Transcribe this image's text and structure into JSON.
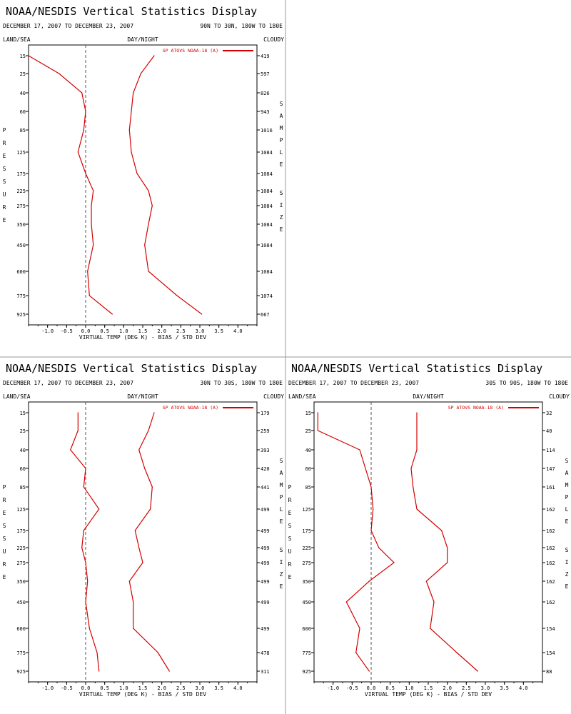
{
  "colors": {
    "series": "#d40000",
    "axis": "#000000",
    "zero_line": "#555555",
    "panel_border": "#999999"
  },
  "chart_data": [
    {
      "type": "line",
      "title": "NOAA/NESDIS Vertical Statistics Display",
      "date_range": "DECEMBER 17, 2007 TO DECEMBER 23, 2007",
      "region": "90N TO 30N, 180W TO 180E",
      "land_sea_label": "LAND/SEA",
      "day_night_label": "DAY/NIGHT",
      "cloudy_label": "CLOUDY",
      "ylabel": "PRESSURE",
      "right_label": "SAMPLE SIZE",
      "xlabel": "VIRTUAL TEMP (DEG K) - BIAS / STD DEV",
      "legend": "SP ATOVS NOAA-18 (A)",
      "legend_position": "top-right",
      "xlim": [
        -1.5,
        4.5
      ],
      "x_ticks": [
        "-1.0",
        "-0.5",
        "0.0",
        "0.5",
        "1.0",
        "1.5",
        "2.0",
        "2.5",
        "3.0",
        "3.5",
        "4.0"
      ],
      "pressure_levels": [
        "15",
        "25",
        "40",
        "60",
        "85",
        "125",
        "175",
        "225",
        "275",
        "350",
        "450",
        "600",
        "775",
        "925"
      ],
      "sample_size": [
        "419",
        "597",
        "826",
        "943",
        "1016",
        "1084",
        "1084",
        "1084",
        "1084",
        "1084",
        "1084",
        "1084",
        "1074",
        "667"
      ],
      "bias": [
        -1.5,
        -0.7,
        -0.1,
        0.0,
        -0.05,
        -0.2,
        0.0,
        0.2,
        0.15,
        0.15,
        0.2,
        0.05,
        0.1,
        0.7
      ],
      "std_dev": [
        1.8,
        1.45,
        1.25,
        1.2,
        1.15,
        1.2,
        1.35,
        1.65,
        1.75,
        1.65,
        1.55,
        1.65,
        2.4,
        3.05
      ]
    },
    {
      "type": "line",
      "title": "NOAA/NESDIS Vertical Statistics Display",
      "date_range": "DECEMBER 17, 2007 TO DECEMBER 23, 2007",
      "region": "30N TO 30S, 180W TO 180E",
      "land_sea_label": "LAND/SEA",
      "day_night_label": "DAY/NIGHT",
      "cloudy_label": "CLOUDY",
      "ylabel": "PRESSURE",
      "right_label": "SAMPLE SIZE",
      "xlabel": "VIRTUAL TEMP (DEG K) - BIAS / STD DEV",
      "legend": "SP ATOVS NOAA-18 (A)",
      "legend_position": "top-right",
      "xlim": [
        -1.5,
        4.5
      ],
      "x_ticks": [
        "-1.0",
        "-0.5",
        "0.0",
        "0.5",
        "1.0",
        "1.5",
        "2.0",
        "2.5",
        "3.0",
        "3.5",
        "4.0"
      ],
      "pressure_levels": [
        "15",
        "25",
        "40",
        "60",
        "85",
        "125",
        "175",
        "225",
        "275",
        "350",
        "450",
        "600",
        "775",
        "925"
      ],
      "sample_size": [
        "179",
        "259",
        "393",
        "420",
        "441",
        "499",
        "499",
        "499",
        "499",
        "499",
        "499",
        "499",
        "478",
        "311"
      ],
      "bias": [
        -0.2,
        -0.2,
        -0.4,
        0.0,
        -0.05,
        0.35,
        -0.05,
        -0.1,
        0.0,
        0.05,
        0.0,
        0.1,
        0.3,
        0.35
      ],
      "std_dev": [
        1.8,
        1.65,
        1.4,
        1.55,
        1.75,
        1.7,
        1.3,
        1.4,
        1.5,
        1.15,
        1.25,
        1.25,
        1.9,
        2.2
      ]
    },
    {
      "type": "line",
      "title": "NOAA/NESDIS Vertical Statistics Display",
      "date_range": "DECEMBER 17, 2007 TO DECEMBER 23, 2007",
      "region": "30S TO 90S, 180W TO 180E",
      "land_sea_label": "LAND/SEA",
      "day_night_label": "DAY/NIGHT",
      "cloudy_label": "CLOUDY",
      "ylabel": "PRESSURE",
      "right_label": "SAMPLE SIZE",
      "xlabel": "VIRTUAL TEMP (DEG K) - BIAS / STD DEV",
      "legend": "SP ATOVS NOAA-18 (A)",
      "legend_position": "top-right",
      "xlim": [
        -1.5,
        4.5
      ],
      "x_ticks": [
        "-1.0",
        "-0.5",
        "0.0",
        "0.5",
        "1.0",
        "1.5",
        "2.0",
        "2.5",
        "3.0",
        "3.5",
        "4.0"
      ],
      "pressure_levels": [
        "15",
        "25",
        "40",
        "60",
        "85",
        "125",
        "175",
        "225",
        "275",
        "350",
        "450",
        "600",
        "775",
        "925"
      ],
      "sample_size": [
        "32",
        "40",
        "114",
        "147",
        "161",
        "162",
        "162",
        "162",
        "162",
        "162",
        "162",
        "154",
        "154",
        "88"
      ],
      "bias": [
        -1.4,
        -1.4,
        -0.3,
        -0.15,
        0.0,
        0.05,
        0.0,
        0.2,
        0.6,
        -0.05,
        -0.65,
        -0.3,
        -0.4,
        -0.05
      ],
      "std_dev": [
        1.2,
        1.2,
        1.2,
        1.05,
        1.1,
        1.2,
        1.85,
        2.0,
        2.0,
        1.45,
        1.65,
        1.55,
        2.25,
        2.8
      ]
    }
  ]
}
